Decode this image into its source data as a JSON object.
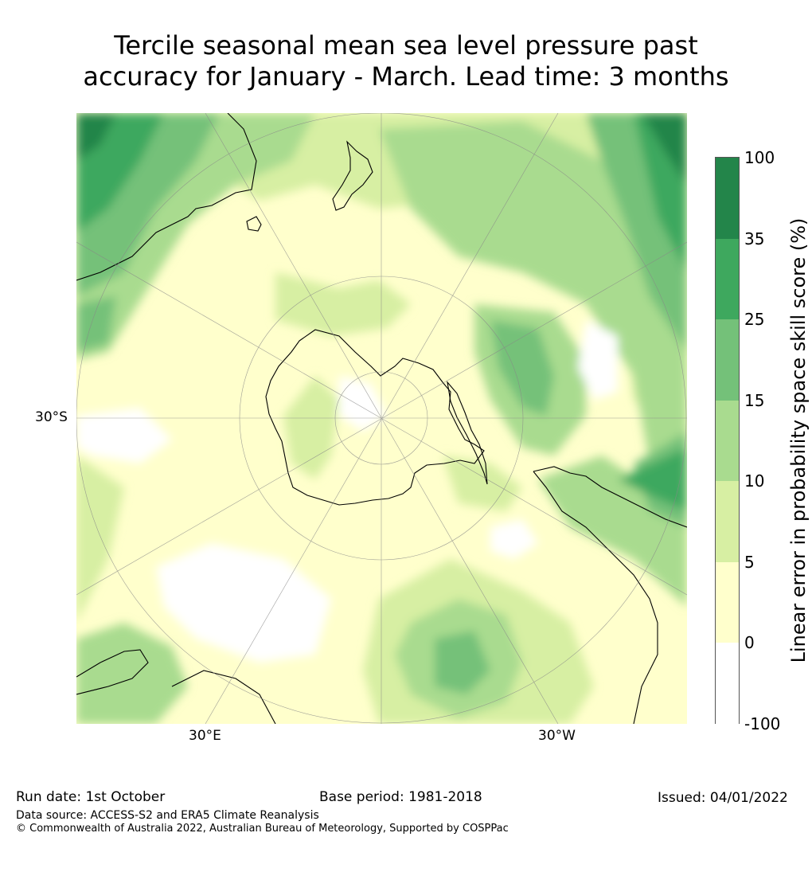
{
  "title_lines": [
    "Tercile seasonal mean sea level pressure past",
    "accuracy for January - March. Lead time: 3 months"
  ],
  "map": {
    "projection": "south-polar-stereographic",
    "lat_label": "30°S",
    "lon_labels": [
      "30°E",
      "30°W"
    ]
  },
  "colorbar": {
    "label": "Linear error in probability space skill score (%)",
    "ticks": [
      "100",
      "35",
      "25",
      "15",
      "10",
      "5",
      "0",
      "-100"
    ],
    "colors": [
      "#23854a",
      "#3ea85e",
      "#74c179",
      "#a9db8f",
      "#d7efa3",
      "#ffffcc",
      "#ffffff"
    ]
  },
  "footer": {
    "run_date": "Run date: 1st October",
    "base_period": "Base period: 1981-2018",
    "issued": "Issued: 04/01/2022",
    "data_source": "Data source: ACCESS-S2 and ERA5 Climate Reanalysis",
    "copyright": "© Commonwealth of Australia 2022, Australian Bureau of Meteorology, Supported by COSPPac"
  }
}
